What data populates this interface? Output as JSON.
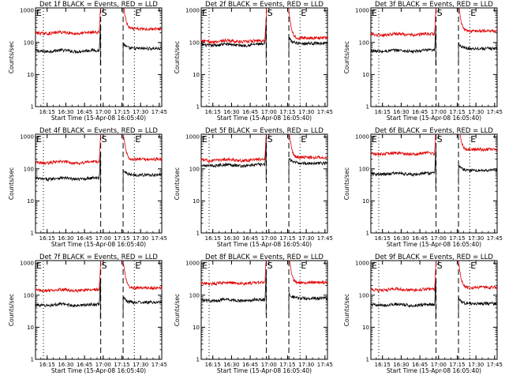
{
  "figure": {
    "common": {
      "xlabel": "Start Time (15-Apr-08 16:05:40)",
      "ylabel": "Counts/sec",
      "x_tick_labels": [
        "16:15",
        "16:30",
        "16:45",
        "17:00",
        "17:15",
        "17:30",
        "17:45"
      ],
      "y_tick_labels": [
        "1",
        "10",
        "100",
        "1000"
      ],
      "markers": {
        "E": "E",
        "S": "S"
      },
      "colors": {
        "events": "#000000",
        "lld": "#e00000",
        "axes": "#000000"
      }
    }
  },
  "chart_data": [
    {
      "type": "line",
      "title": "Det 1f BLACK = Events, RED = LLD",
      "xlabel": "Start Time (15-Apr-08 16:05:40)",
      "ylabel": "Counts/sec",
      "y_scale": "log",
      "ylim": [
        1,
        1200
      ],
      "xlim": [
        "16:05:40",
        "17:47:00"
      ],
      "x_ticks": [
        "16:15",
        "16:30",
        "16:45",
        "17:00",
        "17:15",
        "17:30",
        "17:45"
      ],
      "eclipse_end": "16:12",
      "saa": [
        "16:58",
        "17:16"
      ],
      "eclipse_start": "17:25",
      "series": [
        {
          "name": "Events",
          "before": 55,
          "after": 65
        },
        {
          "name": "LLD",
          "before": 200,
          "after": 265
        }
      ]
    },
    {
      "type": "line",
      "title": "Det 2f BLACK = Events, RED = LLD",
      "xlabel": "Start Time (15-Apr-08 16:05:40)",
      "ylabel": "Counts/sec",
      "y_scale": "log",
      "ylim": [
        1,
        1200
      ],
      "xlim": [
        "16:05:40",
        "17:47:00"
      ],
      "x_ticks": [
        "16:15",
        "16:30",
        "16:45",
        "17:00",
        "17:15",
        "17:30",
        "17:45"
      ],
      "eclipse_end": "16:12",
      "saa": [
        "16:58",
        "17:16"
      ],
      "eclipse_start": "17:25",
      "series": [
        {
          "name": "Events",
          "before": 85,
          "after": 95
        },
        {
          "name": "LLD",
          "before": 110,
          "after": 140
        }
      ]
    },
    {
      "type": "line",
      "title": "Det 3f BLACK = Events, RED = LLD",
      "xlabel": "Start Time (15-Apr-08 16:05:40)",
      "ylabel": "Counts/sec",
      "y_scale": "log",
      "ylim": [
        1,
        1200
      ],
      "xlim": [
        "16:05:40",
        "17:47:00"
      ],
      "x_ticks": [
        "16:15",
        "16:30",
        "16:45",
        "17:00",
        "17:15",
        "17:30",
        "17:45"
      ],
      "eclipse_end": "16:12",
      "saa": [
        "16:58",
        "17:16"
      ],
      "eclipse_start": "17:25",
      "series": [
        {
          "name": "Events",
          "before": 55,
          "after": 65
        },
        {
          "name": "LLD",
          "before": 180,
          "after": 230
        }
      ]
    },
    {
      "type": "line",
      "title": "Det 4f BLACK = Events, RED = LLD",
      "xlabel": "Start Time (15-Apr-08 16:05:40)",
      "ylabel": "Counts/sec",
      "y_scale": "log",
      "ylim": [
        1,
        1200
      ],
      "xlim": [
        "16:05:40",
        "17:47:00"
      ],
      "x_ticks": [
        "16:15",
        "16:30",
        "16:45",
        "17:00",
        "17:15",
        "17:30",
        "17:45"
      ],
      "eclipse_end": "16:12",
      "saa": [
        "16:58",
        "17:16"
      ],
      "eclipse_start": "17:25",
      "series": [
        {
          "name": "Events",
          "before": 50,
          "after": 65
        },
        {
          "name": "LLD",
          "before": 160,
          "after": 200
        }
      ]
    },
    {
      "type": "line",
      "title": "Det 5f BLACK = Events, RED = LLD",
      "xlabel": "Start Time (15-Apr-08 16:05:40)",
      "ylabel": "Counts/sec",
      "y_scale": "log",
      "ylim": [
        1,
        1200
      ],
      "xlim": [
        "16:05:40",
        "17:47:00"
      ],
      "x_ticks": [
        "16:15",
        "16:30",
        "16:45",
        "17:00",
        "17:15",
        "17:30",
        "17:45"
      ],
      "eclipse_end": "16:12",
      "saa": [
        "16:58",
        "17:16"
      ],
      "eclipse_start": "17:25",
      "series": [
        {
          "name": "Events",
          "before": 130,
          "after": 150
        },
        {
          "name": "LLD",
          "before": 190,
          "after": 230
        }
      ]
    },
    {
      "type": "line",
      "title": "Det 6f BLACK = Events, RED = LLD",
      "xlabel": "Start Time (15-Apr-08 16:05:40)",
      "ylabel": "Counts/sec",
      "y_scale": "log",
      "ylim": [
        1,
        1200
      ],
      "xlim": [
        "16:05:40",
        "17:47:00"
      ],
      "x_ticks": [
        "16:15",
        "16:30",
        "16:45",
        "17:00",
        "17:15",
        "17:30",
        "17:45"
      ],
      "eclipse_end": "16:12",
      "saa": [
        "16:58",
        "17:16"
      ],
      "eclipse_start": "17:25",
      "series": [
        {
          "name": "Events",
          "before": 70,
          "after": 90
        },
        {
          "name": "LLD",
          "before": 300,
          "after": 400
        }
      ]
    },
    {
      "type": "line",
      "title": "Det 7f BLACK = Events, RED = LLD",
      "xlabel": "Start Time (15-Apr-08 16:05:40)",
      "ylabel": "Counts/sec",
      "y_scale": "log",
      "ylim": [
        1,
        1200
      ],
      "xlim": [
        "16:05:40",
        "17:47:00"
      ],
      "x_ticks": [
        "16:15",
        "16:30",
        "16:45",
        "17:00",
        "17:15",
        "17:30",
        "17:45"
      ],
      "eclipse_end": "16:12",
      "saa": [
        "16:58",
        "17:16"
      ],
      "eclipse_start": "17:25",
      "series": [
        {
          "name": "Events",
          "before": 50,
          "after": 60
        },
        {
          "name": "LLD",
          "before": 145,
          "after": 170
        }
      ]
    },
    {
      "type": "line",
      "title": "Det 8f BLACK = Events, RED = LLD",
      "xlabel": "Start Time (15-Apr-08 16:05:40)",
      "ylabel": "Counts/sec",
      "y_scale": "log",
      "ylim": [
        1,
        1200
      ],
      "xlim": [
        "16:05:40",
        "17:47:00"
      ],
      "x_ticks": [
        "16:15",
        "16:30",
        "16:45",
        "17:00",
        "17:15",
        "17:30",
        "17:45"
      ],
      "eclipse_end": "16:12",
      "saa": [
        "16:58",
        "17:16"
      ],
      "eclipse_start": "17:25",
      "series": [
        {
          "name": "Events",
          "before": 70,
          "after": 80
        },
        {
          "name": "LLD",
          "before": 240,
          "after": 250
        }
      ]
    },
    {
      "type": "line",
      "title": "Det 9f BLACK = Events, RED = LLD",
      "xlabel": "Start Time (15-Apr-08 16:05:40)",
      "ylabel": "Counts/sec",
      "y_scale": "log",
      "ylim": [
        1,
        1200
      ],
      "xlim": [
        "16:05:40",
        "17:47:00"
      ],
      "x_ticks": [
        "16:15",
        "16:30",
        "16:45",
        "17:00",
        "17:15",
        "17:30",
        "17:45"
      ],
      "eclipse_end": "16:12",
      "saa": [
        "16:58",
        "17:16"
      ],
      "eclipse_start": "17:25",
      "series": [
        {
          "name": "Events",
          "before": 50,
          "after": 55
        },
        {
          "name": "LLD",
          "before": 150,
          "after": 175
        }
      ]
    }
  ]
}
